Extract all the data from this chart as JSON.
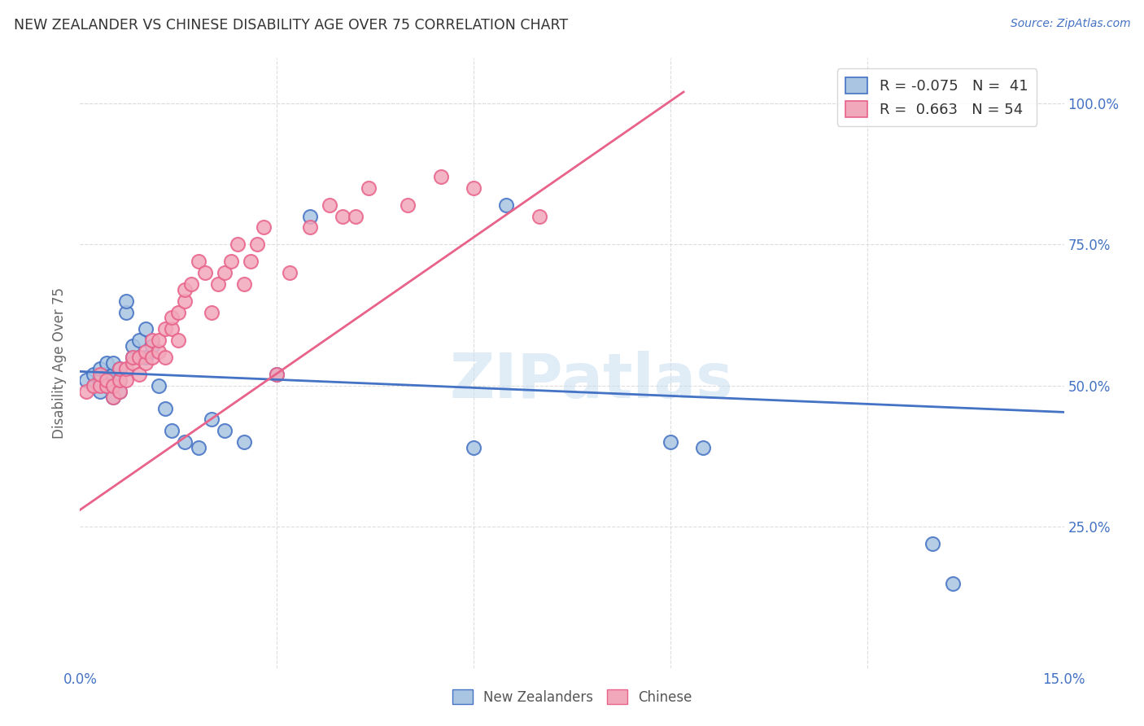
{
  "title": "NEW ZEALANDER VS CHINESE DISABILITY AGE OVER 75 CORRELATION CHART",
  "source": "Source: ZipAtlas.com",
  "ylabel": "Disability Age Over 75",
  "xmin": 0.0,
  "xmax": 0.15,
  "ymin": 0.0,
  "ymax": 1.08,
  "ytick_positions": [
    0.0,
    0.25,
    0.5,
    0.75,
    1.0
  ],
  "ytick_labels_right": [
    "",
    "25.0%",
    "50.0%",
    "75.0%",
    "100.0%"
  ],
  "xtick_positions": [
    0.0,
    0.03,
    0.06,
    0.09,
    0.12,
    0.15
  ],
  "xtick_labels": [
    "0.0%",
    "",
    "",
    "",
    "",
    "15.0%"
  ],
  "legend_nz_R": "-0.075",
  "legend_nz_N": "41",
  "legend_ch_R": "0.663",
  "legend_ch_N": "54",
  "nz_color": "#aac5e2",
  "ch_color": "#f2a8bb",
  "nz_line_color": "#4472c4",
  "ch_line_color": "#e8628a",
  "watermark": "ZIPatlas",
  "nz_trendline_x": [
    0.0,
    0.15
  ],
  "nz_trendline_y": [
    0.525,
    0.453
  ],
  "ch_trendline_x": [
    0.0,
    0.092
  ],
  "ch_trendline_y": [
    0.28,
    1.02
  ],
  "nz_points_x": [
    0.001,
    0.002,
    0.002,
    0.003,
    0.003,
    0.003,
    0.004,
    0.004,
    0.004,
    0.005,
    0.005,
    0.005,
    0.005,
    0.006,
    0.006,
    0.006,
    0.007,
    0.007,
    0.008,
    0.008,
    0.009,
    0.009,
    0.01,
    0.01,
    0.011,
    0.012,
    0.013,
    0.014,
    0.016,
    0.018,
    0.02,
    0.022,
    0.025,
    0.03,
    0.035,
    0.06,
    0.065,
    0.09,
    0.095,
    0.13,
    0.133
  ],
  "nz_points_y": [
    0.51,
    0.5,
    0.52,
    0.49,
    0.51,
    0.53,
    0.5,
    0.52,
    0.54,
    0.48,
    0.5,
    0.52,
    0.54,
    0.49,
    0.51,
    0.53,
    0.63,
    0.65,
    0.55,
    0.57,
    0.55,
    0.58,
    0.6,
    0.55,
    0.57,
    0.5,
    0.46,
    0.42,
    0.4,
    0.39,
    0.44,
    0.42,
    0.4,
    0.52,
    0.8,
    0.39,
    0.82,
    0.4,
    0.39,
    0.22,
    0.15
  ],
  "ch_points_x": [
    0.001,
    0.002,
    0.003,
    0.003,
    0.004,
    0.004,
    0.005,
    0.005,
    0.006,
    0.006,
    0.006,
    0.007,
    0.007,
    0.008,
    0.008,
    0.009,
    0.009,
    0.01,
    0.01,
    0.011,
    0.011,
    0.012,
    0.012,
    0.013,
    0.013,
    0.014,
    0.014,
    0.015,
    0.015,
    0.016,
    0.016,
    0.017,
    0.018,
    0.019,
    0.02,
    0.021,
    0.022,
    0.023,
    0.024,
    0.025,
    0.026,
    0.027,
    0.028,
    0.03,
    0.032,
    0.035,
    0.038,
    0.04,
    0.042,
    0.044,
    0.05,
    0.055,
    0.06,
    0.07
  ],
  "ch_points_y": [
    0.49,
    0.5,
    0.5,
    0.52,
    0.5,
    0.51,
    0.48,
    0.5,
    0.49,
    0.51,
    0.53,
    0.51,
    0.53,
    0.54,
    0.55,
    0.52,
    0.55,
    0.54,
    0.56,
    0.55,
    0.58,
    0.56,
    0.58,
    0.6,
    0.55,
    0.6,
    0.62,
    0.63,
    0.58,
    0.65,
    0.67,
    0.68,
    0.72,
    0.7,
    0.63,
    0.68,
    0.7,
    0.72,
    0.75,
    0.68,
    0.72,
    0.75,
    0.78,
    0.52,
    0.7,
    0.78,
    0.82,
    0.8,
    0.8,
    0.85,
    0.82,
    0.87,
    0.85,
    0.8
  ],
  "background_color": "#ffffff",
  "grid_color": "#dddddd",
  "title_color": "#333333",
  "axis_color": "#4472c4",
  "tick_color": "#4472c4"
}
